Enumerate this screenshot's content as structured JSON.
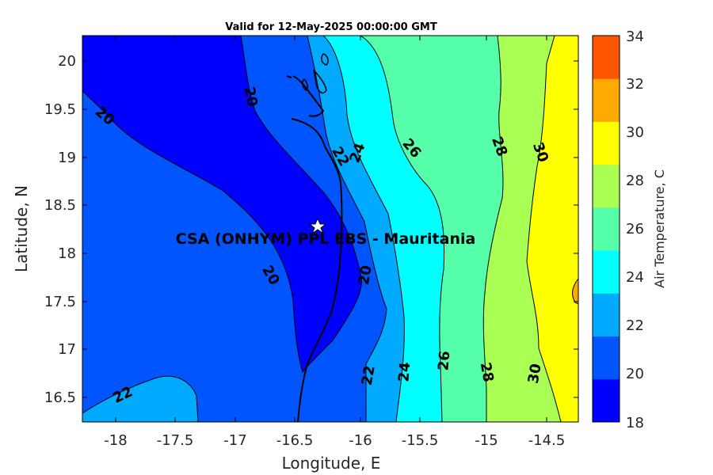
{
  "title": "Valid for 12-May-2025 00:00:00 GMT",
  "x_axis": {
    "label": "Longitude, E",
    "ticks": [
      "-18",
      "-17.5",
      "-17",
      "-16.5",
      "-16",
      "-15.5",
      "-15",
      "-14.5"
    ]
  },
  "y_axis": {
    "label": "Latitude, N",
    "ticks": [
      "20",
      "19.5",
      "19",
      "18.5",
      "18",
      "17.5",
      "17",
      "16.5"
    ]
  },
  "colorbar": {
    "label": "Air Temperature, C",
    "ticks": [
      "34",
      "32",
      "30",
      "28",
      "26",
      "24",
      "22",
      "20",
      "18"
    ],
    "colors": [
      "#0000ff",
      "#0055ff",
      "#00aaff",
      "#00ffff",
      "#55ffaa",
      "#aaff55",
      "#ffff00",
      "#ffaa00",
      "#ff5500"
    ]
  },
  "site": {
    "label": "CSA (ONHYM) PPL EBS  - Mauritania",
    "marker": "star-icon"
  },
  "contour_labels": [
    "20",
    "20",
    "20",
    "20",
    "22",
    "22",
    "22",
    "24",
    "24",
    "26",
    "26",
    "28",
    "28",
    "30",
    "30"
  ]
}
